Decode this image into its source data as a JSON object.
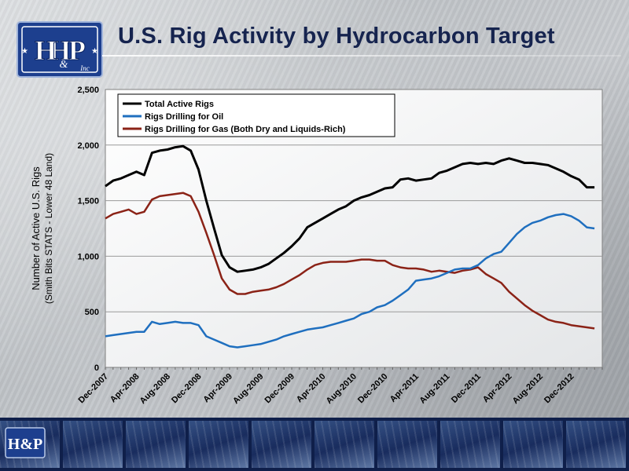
{
  "slide": {
    "title": "U.S. Rig Activity by Hydrocarbon Target",
    "logo_text": "H&P",
    "logo_sub": "& Inc"
  },
  "colors": {
    "total": "#000000",
    "oil": "#1f6fbf",
    "gas": "#8b2317",
    "title": "#16244f",
    "logo_blue": "#1d3f8e"
  },
  "chart_data": {
    "type": "line",
    "ylabel": "Number of Active U.S. Rigs",
    "ylabel2": "(Smith Bits STATS - Lower 48 Land)",
    "ylim": [
      0,
      2500
    ],
    "yticks": [
      0,
      500,
      1000,
      1500,
      2000,
      2500
    ],
    "ytick_labels": [
      "0",
      "500",
      "1,000",
      "1,500",
      "2,000",
      "2,500"
    ],
    "xlim": [
      "2007-12",
      "2013-04"
    ],
    "xtick_labels": [
      "Dec-2007",
      "Apr-2008",
      "Aug-2008",
      "Dec-2008",
      "Apr-2009",
      "Aug-2009",
      "Dec-2009",
      "Apr-2010",
      "Aug-2010",
      "Dec-2010",
      "Apr-2011",
      "Aug-2011",
      "Dec-2011",
      "Apr-2012",
      "Aug-2012",
      "Dec-2012"
    ],
    "grid": "horizontal",
    "legend_position": "top-left",
    "x": [
      "2007-12",
      "2008-01",
      "2008-02",
      "2008-03",
      "2008-04",
      "2008-05",
      "2008-06",
      "2008-07",
      "2008-08",
      "2008-09",
      "2008-10",
      "2008-11",
      "2008-12",
      "2009-01",
      "2009-02",
      "2009-03",
      "2009-04",
      "2009-05",
      "2009-06",
      "2009-07",
      "2009-08",
      "2009-09",
      "2009-10",
      "2009-11",
      "2009-12",
      "2010-01",
      "2010-02",
      "2010-03",
      "2010-04",
      "2010-05",
      "2010-06",
      "2010-07",
      "2010-08",
      "2010-09",
      "2010-10",
      "2010-11",
      "2010-12",
      "2011-01",
      "2011-02",
      "2011-03",
      "2011-04",
      "2011-05",
      "2011-06",
      "2011-07",
      "2011-08",
      "2011-09",
      "2011-10",
      "2011-11",
      "2011-12",
      "2012-01",
      "2012-02",
      "2012-03",
      "2012-04",
      "2012-05",
      "2012-06",
      "2012-07",
      "2012-08",
      "2012-09",
      "2012-10",
      "2012-11",
      "2012-12",
      "2013-01",
      "2013-02",
      "2013-03"
    ],
    "series": [
      {
        "name": "Total Active Rigs",
        "key": "total",
        "values": [
          1630,
          1680,
          1700,
          1730,
          1760,
          1730,
          1930,
          1950,
          1960,
          1980,
          1990,
          1950,
          1780,
          1500,
          1250,
          1010,
          900,
          860,
          870,
          880,
          900,
          930,
          980,
          1030,
          1090,
          1160,
          1260,
          1300,
          1340,
          1380,
          1420,
          1450,
          1500,
          1530,
          1550,
          1580,
          1610,
          1620,
          1690,
          1700,
          1680,
          1690,
          1700,
          1750,
          1770,
          1800,
          1830,
          1840,
          1830,
          1840,
          1830,
          1860,
          1880,
          1860,
          1840,
          1840,
          1830,
          1820,
          1790,
          1760,
          1720,
          1690,
          1620,
          1620
        ]
      },
      {
        "name": "Rigs Drilling for Oil",
        "key": "oil",
        "values": [
          280,
          290,
          300,
          310,
          320,
          320,
          410,
          390,
          400,
          410,
          400,
          400,
          380,
          280,
          250,
          220,
          190,
          180,
          190,
          200,
          210,
          230,
          250,
          280,
          300,
          320,
          340,
          350,
          360,
          380,
          400,
          420,
          440,
          480,
          500,
          540,
          560,
          600,
          650,
          700,
          780,
          790,
          800,
          820,
          850,
          880,
          890,
          890,
          920,
          980,
          1020,
          1040,
          1120,
          1200,
          1260,
          1300,
          1320,
          1350,
          1370,
          1380,
          1360,
          1320,
          1260,
          1250
        ]
      },
      {
        "name": "Rigs Drilling for Gas (Both Dry and Liquids-Rich)",
        "key": "gas",
        "values": [
          1340,
          1380,
          1400,
          1420,
          1380,
          1400,
          1510,
          1540,
          1550,
          1560,
          1570,
          1540,
          1400,
          1210,
          1010,
          800,
          700,
          660,
          660,
          680,
          690,
          700,
          720,
          750,
          790,
          830,
          880,
          920,
          940,
          950,
          950,
          950,
          960,
          970,
          970,
          960,
          960,
          920,
          900,
          890,
          890,
          880,
          860,
          870,
          860,
          850,
          870,
          880,
          900,
          840,
          800,
          760,
          680,
          620,
          560,
          510,
          470,
          430,
          410,
          400,
          380,
          370,
          360,
          350
        ]
      }
    ]
  }
}
